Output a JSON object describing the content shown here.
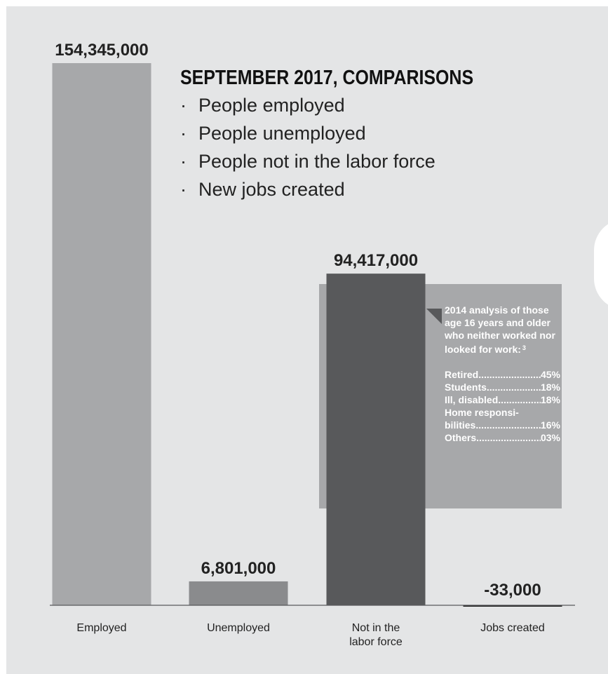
{
  "chart_data": {
    "type": "bar",
    "title": "SEPTEMBER 2017, COMPARISONS",
    "categories": [
      "Employed",
      "Unemployed",
      "Not in the labor force",
      "Jobs created"
    ],
    "values": [
      154345000,
      6801000,
      94417000,
      -33000
    ],
    "value_labels": [
      "154,345,000",
      "6,801,000",
      "94,417,000",
      "-33,000"
    ],
    "category_lines": [
      [
        "Employed"
      ],
      [
        "Unemployed"
      ],
      [
        "Not in the",
        "labor force"
      ],
      [
        "Jobs created"
      ]
    ],
    "bar_colors": [
      "#a7a8aa",
      "#8a8b8d",
      "#58595b",
      "#222222"
    ],
    "ylim": [
      0,
      154345000
    ],
    "grid": false,
    "xlabel": "",
    "ylabel": ""
  },
  "bullets": [
    "People employed",
    "People unemployed",
    "People not in the labor force",
    "New jobs created"
  ],
  "bullet_symbol": "·",
  "note": {
    "heading": "2014 analysis of those age 16 years and older who neither worked nor looked for work:",
    "footnote": "3",
    "items": [
      {
        "label": "Retired",
        "value": "45%"
      },
      {
        "label": "Students",
        "value": "18%"
      },
      {
        "label": "Ill, disabled",
        "value": "18%"
      },
      {
        "label": "Home responsi-",
        "value": ""
      },
      {
        "label": "bilities",
        "value": "16%"
      },
      {
        "label": "Others",
        "value": "03%"
      }
    ]
  },
  "colors": {
    "background": "#e4e5e6",
    "note_box": "#a7a8aa",
    "note_text": "#ffffff",
    "text": "#222222"
  }
}
